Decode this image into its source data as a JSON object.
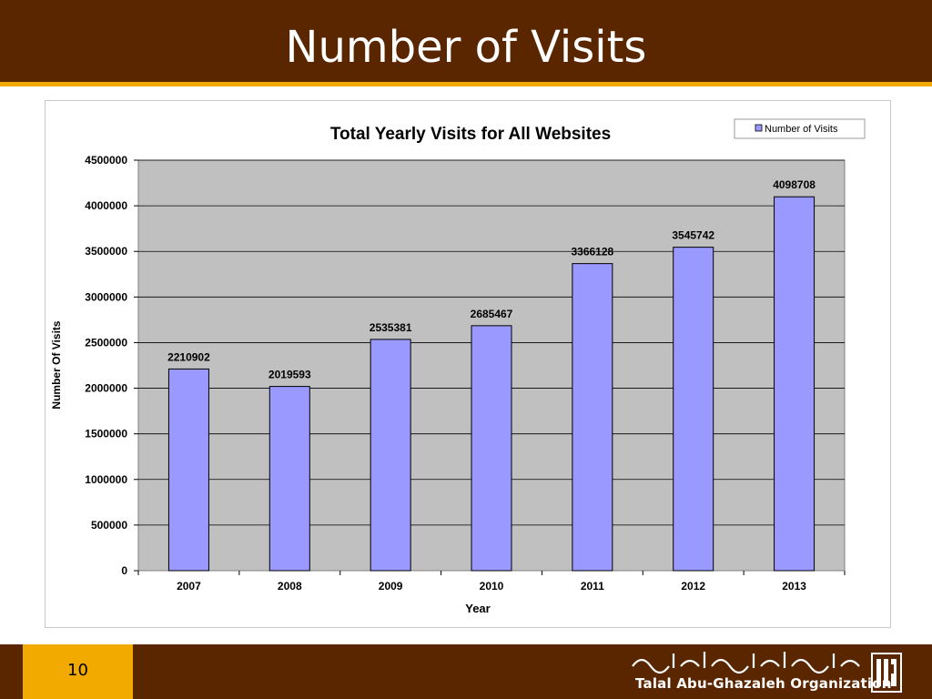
{
  "slide": {
    "title": "Number of Visits",
    "page_number": "10",
    "organization": "Talal Abu-Ghazaleh Organization",
    "colors": {
      "header": "#5a2600",
      "accent": "#f2a900",
      "bar": "#9999ff",
      "plot_bg": "#c0c0c0"
    }
  },
  "chart_data": {
    "type": "bar",
    "title": "Total Yearly Visits for All Websites",
    "xlabel": "Year",
    "ylabel": "Number  Of  Visits",
    "categories": [
      "2007",
      "2008",
      "2009",
      "2010",
      "2011",
      "2012",
      "2013"
    ],
    "series": [
      {
        "name": "Number of Visits",
        "values": [
          2210902,
          2019593,
          2535381,
          2685467,
          3366128,
          3545742,
          4098708
        ]
      }
    ],
    "ylim": [
      0,
      4500000
    ],
    "yticks": [
      0,
      500000,
      1000000,
      1500000,
      2000000,
      2500000,
      3000000,
      3500000,
      4000000,
      4500000
    ],
    "grid": true,
    "legend": "top-right",
    "data_labels": true
  }
}
